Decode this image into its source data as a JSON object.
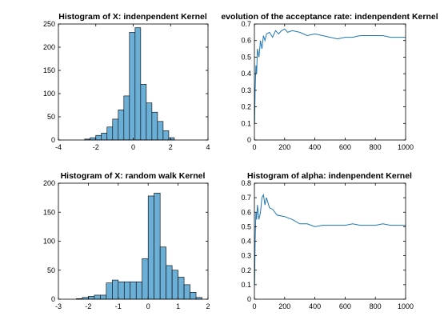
{
  "figure": {
    "background": "#ffffff",
    "bar_color": "#6baed6",
    "line_color": "#1f77b4"
  },
  "chart_data": [
    {
      "type": "bar",
      "title": "Histogram of X: indenpendent Kernel",
      "xlim": [
        -4,
        4
      ],
      "ylim": [
        0,
        250
      ],
      "xticks": [
        -4,
        -2,
        0,
        2,
        4
      ],
      "yticks": [
        0,
        50,
        100,
        150,
        200,
        250
      ],
      "bin_edges": [
        -2.6,
        -2.3,
        -2.0,
        -1.7,
        -1.4,
        -1.1,
        -0.8,
        -0.5,
        -0.2,
        0.1,
        0.4,
        0.7,
        1.0,
        1.3,
        1.6,
        1.9,
        2.2
      ],
      "values": [
        2,
        5,
        10,
        15,
        28,
        45,
        65,
        95,
        232,
        242,
        120,
        80,
        60,
        40,
        20,
        5
      ]
    },
    {
      "type": "line",
      "title": "evolution of the acceptance rate: indenpendent Kernel",
      "xlim": [
        0,
        1000
      ],
      "ylim": [
        0,
        0.7
      ],
      "xticks": [
        0,
        200,
        400,
        600,
        800,
        1000
      ],
      "yticks": [
        0,
        0.1,
        0.2,
        0.3,
        0.4,
        0.5,
        0.6,
        0.7
      ],
      "x": [
        1,
        5,
        10,
        15,
        20,
        30,
        40,
        50,
        60,
        70,
        80,
        100,
        120,
        140,
        160,
        180,
        200,
        220,
        250,
        300,
        350,
        400,
        450,
        500,
        550,
        600,
        650,
        700,
        750,
        800,
        850,
        900,
        950,
        1000
      ],
      "y": [
        0.1,
        0.3,
        0.45,
        0.4,
        0.55,
        0.5,
        0.6,
        0.55,
        0.63,
        0.6,
        0.64,
        0.65,
        0.62,
        0.66,
        0.64,
        0.66,
        0.67,
        0.65,
        0.66,
        0.65,
        0.63,
        0.64,
        0.63,
        0.62,
        0.61,
        0.62,
        0.62,
        0.63,
        0.63,
        0.63,
        0.63,
        0.62,
        0.62,
        0.62
      ]
    },
    {
      "type": "bar",
      "title": "Histogram of X: random walk Kernel",
      "xlim": [
        -3,
        2
      ],
      "ylim": [
        0,
        200
      ],
      "xticks": [
        -3,
        -2,
        -1,
        0,
        1,
        2
      ],
      "yticks": [
        0,
        50,
        100,
        150,
        200
      ],
      "bin_edges": [
        -2.4,
        -2.2,
        -2.0,
        -1.8,
        -1.6,
        -1.4,
        -1.2,
        -1.0,
        -0.8,
        -0.6,
        -0.4,
        -0.2,
        0.0,
        0.2,
        0.4,
        0.6,
        0.8,
        1.0,
        1.2,
        1.4,
        1.6,
        1.8
      ],
      "values": [
        1,
        3,
        5,
        7,
        7,
        28,
        33,
        30,
        30,
        30,
        30,
        70,
        178,
        183,
        90,
        58,
        50,
        38,
        25,
        12,
        3
      ]
    },
    {
      "type": "line",
      "title": "Histogram of alpha: indenpendent Kernel",
      "xlim": [
        0,
        1000
      ],
      "ylim": [
        0,
        0.8
      ],
      "xticks": [
        0,
        200,
        400,
        600,
        800,
        1000
      ],
      "yticks": [
        0,
        0.1,
        0.2,
        0.3,
        0.4,
        0.5,
        0.6,
        0.7,
        0.8
      ],
      "x": [
        1,
        5,
        10,
        15,
        20,
        30,
        40,
        50,
        60,
        70,
        80,
        100,
        120,
        150,
        200,
        250,
        300,
        350,
        400,
        450,
        500,
        550,
        600,
        650,
        700,
        750,
        800,
        850,
        900,
        950,
        1000
      ],
      "y": [
        0.1,
        0.4,
        0.6,
        0.55,
        0.65,
        0.55,
        0.6,
        0.7,
        0.72,
        0.65,
        0.7,
        0.63,
        0.62,
        0.58,
        0.57,
        0.55,
        0.52,
        0.52,
        0.5,
        0.51,
        0.51,
        0.51,
        0.51,
        0.52,
        0.51,
        0.51,
        0.51,
        0.52,
        0.51,
        0.51,
        0.51
      ]
    }
  ]
}
